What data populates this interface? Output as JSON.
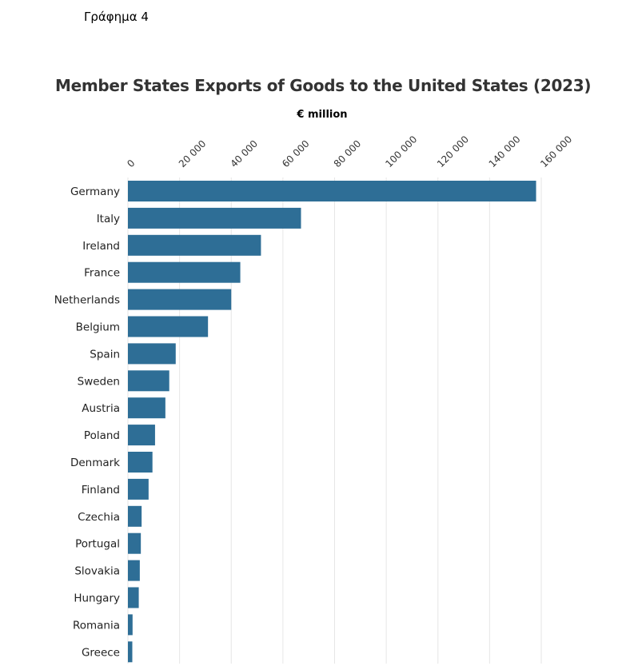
{
  "caption": "Γράφημα 4",
  "chart_data": {
    "type": "bar",
    "orientation": "horizontal",
    "title": "Member States Exports of Goods to the United States (2023)",
    "xlabel": "€ million",
    "ylabel": "",
    "xlim": [
      0,
      160000
    ],
    "ticks": [
      0,
      20000,
      40000,
      60000,
      80000,
      100000,
      120000,
      140000,
      160000
    ],
    "tick_labels": [
      "0",
      "20 000",
      "40 000",
      "60 000",
      "80 000",
      "100 000",
      "120 000",
      "140 000",
      "160 000"
    ],
    "axis_position": "top",
    "grid": true,
    "bar_color": "#2e6e96",
    "categories": [
      "Germany",
      "Italy",
      "Ireland",
      "France",
      "Netherlands",
      "Belgium",
      "Spain",
      "Sweden",
      "Austria",
      "Poland",
      "Denmark",
      "Finland",
      "Czechia",
      "Portugal",
      "Slovakia",
      "Hungary",
      "Romania",
      "Greece"
    ],
    "values": [
      158000,
      67000,
      51500,
      43500,
      40000,
      31000,
      18500,
      16000,
      14500,
      10500,
      9500,
      8000,
      5300,
      5000,
      4600,
      4200,
      1800,
      1700
    ]
  }
}
